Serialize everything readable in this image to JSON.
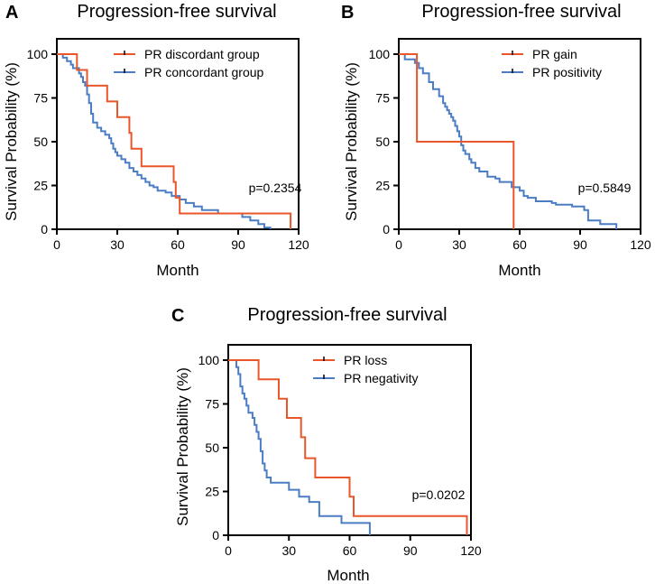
{
  "chart_data": [
    {
      "type": "line",
      "panel": "A",
      "title": "Progression-free survival",
      "xlabel": "Month",
      "ylabel": "Survival Probability (%)",
      "xlim": [
        0,
        120
      ],
      "ylim": [
        0,
        100
      ],
      "xticks": [
        "0",
        "30",
        "60",
        "90",
        "120"
      ],
      "yticks": [
        "0",
        "25",
        "50",
        "75",
        "100"
      ],
      "pvalue": "p=0.2354",
      "series": [
        {
          "name": "PR discordant group",
          "color": "#e8562a",
          "step_points": [
            [
              0,
              100
            ],
            [
              10,
              100
            ],
            [
              10,
              91
            ],
            [
              15,
              91
            ],
            [
              15,
              82
            ],
            [
              25,
              82
            ],
            [
              25,
              73
            ],
            [
              30,
              73
            ],
            [
              30,
              64
            ],
            [
              36,
              64
            ],
            [
              36,
              55
            ],
            [
              37,
              55
            ],
            [
              37,
              46
            ],
            [
              42,
              46
            ],
            [
              42,
              36
            ],
            [
              58,
              36
            ],
            [
              58,
              27
            ],
            [
              59,
              27
            ],
            [
              59,
              18
            ],
            [
              61,
              18
            ],
            [
              61,
              9
            ],
            [
              116,
              9
            ],
            [
              116,
              0
            ]
          ]
        },
        {
          "name": "PR concordant group",
          "color": "#4a7dc4",
          "step_points": [
            [
              0,
              100
            ],
            [
              3,
              100
            ],
            [
              3,
              98
            ],
            [
              5,
              98
            ],
            [
              5,
              96
            ],
            [
              7,
              96
            ],
            [
              7,
              94
            ],
            [
              8,
              94
            ],
            [
              8,
              92
            ],
            [
              11,
              92
            ],
            [
              11,
              89
            ],
            [
              12,
              89
            ],
            [
              12,
              87
            ],
            [
              13,
              87
            ],
            [
              13,
              84
            ],
            [
              14,
              84
            ],
            [
              14,
              82
            ],
            [
              15,
              82
            ],
            [
              15,
              77
            ],
            [
              16,
              77
            ],
            [
              16,
              72
            ],
            [
              17,
              72
            ],
            [
              17,
              66
            ],
            [
              18,
              66
            ],
            [
              18,
              61
            ],
            [
              20,
              61
            ],
            [
              20,
              58
            ],
            [
              22,
              58
            ],
            [
              22,
              56
            ],
            [
              24,
              56
            ],
            [
              24,
              54
            ],
            [
              26,
              54
            ],
            [
              26,
              52
            ],
            [
              27,
              52
            ],
            [
              27,
              49
            ],
            [
              28,
              49
            ],
            [
              28,
              46
            ],
            [
              29,
              46
            ],
            [
              29,
              44
            ],
            [
              30,
              44
            ],
            [
              30,
              42
            ],
            [
              32,
              42
            ],
            [
              32,
              40
            ],
            [
              34,
              40
            ],
            [
              34,
              38
            ],
            [
              36,
              38
            ],
            [
              36,
              35
            ],
            [
              38,
              35
            ],
            [
              38,
              33
            ],
            [
              40,
              33
            ],
            [
              40,
              31
            ],
            [
              42,
              31
            ],
            [
              42,
              29
            ],
            [
              44,
              29
            ],
            [
              44,
              27
            ],
            [
              46,
              27
            ],
            [
              46,
              25
            ],
            [
              48,
              25
            ],
            [
              48,
              24
            ],
            [
              50,
              24
            ],
            [
              50,
              22
            ],
            [
              54,
              22
            ],
            [
              54,
              21
            ],
            [
              57,
              21
            ],
            [
              57,
              19
            ],
            [
              61,
              19
            ],
            [
              61,
              17
            ],
            [
              64,
              17
            ],
            [
              64,
              15
            ],
            [
              68,
              15
            ],
            [
              68,
              13
            ],
            [
              72,
              13
            ],
            [
              72,
              11
            ],
            [
              80,
              11
            ],
            [
              80,
              9
            ],
            [
              92,
              9
            ],
            [
              92,
              7
            ],
            [
              96,
              7
            ],
            [
              96,
              5
            ],
            [
              100,
              5
            ],
            [
              100,
              3
            ],
            [
              103,
              3
            ],
            [
              103,
              1
            ],
            [
              106,
              1
            ],
            [
              106,
              0
            ]
          ]
        }
      ]
    },
    {
      "type": "line",
      "panel": "B",
      "title": "Progression-free survival",
      "xlabel": "Month",
      "ylabel": "Survival Probability (%)",
      "xlim": [
        0,
        120
      ],
      "ylim": [
        0,
        100
      ],
      "xticks": [
        "0",
        "30",
        "60",
        "90",
        "120"
      ],
      "yticks": [
        "0",
        "25",
        "50",
        "75",
        "100"
      ],
      "pvalue": "p=0.5849",
      "series": [
        {
          "name": "PR gain",
          "color": "#e8562a",
          "step_points": [
            [
              0,
              100
            ],
            [
              9,
              100
            ],
            [
              9,
              50
            ],
            [
              57,
              50
            ],
            [
              57,
              0
            ]
          ]
        },
        {
          "name": "PR positivity",
          "color": "#4a7dc4",
          "step_points": [
            [
              0,
              100
            ],
            [
              3,
              100
            ],
            [
              3,
              97
            ],
            [
              8,
              97
            ],
            [
              8,
              95
            ],
            [
              10,
              95
            ],
            [
              10,
              92
            ],
            [
              12,
              92
            ],
            [
              12,
              89
            ],
            [
              15,
              89
            ],
            [
              15,
              84
            ],
            [
              17,
              84
            ],
            [
              17,
              80
            ],
            [
              20,
              80
            ],
            [
              20,
              76
            ],
            [
              22,
              76
            ],
            [
              22,
              72
            ],
            [
              23,
              72
            ],
            [
              23,
              70
            ],
            [
              24,
              70
            ],
            [
              24,
              68
            ],
            [
              25,
              68
            ],
            [
              25,
              66
            ],
            [
              26,
              66
            ],
            [
              26,
              64
            ],
            [
              27,
              64
            ],
            [
              27,
              62
            ],
            [
              28,
              62
            ],
            [
              28,
              59
            ],
            [
              29,
              59
            ],
            [
              29,
              56
            ],
            [
              30,
              56
            ],
            [
              30,
              53
            ],
            [
              31,
              53
            ],
            [
              31,
              48
            ],
            [
              32,
              48
            ],
            [
              32,
              45
            ],
            [
              33,
              45
            ],
            [
              33,
              43
            ],
            [
              35,
              43
            ],
            [
              35,
              40
            ],
            [
              36,
              40
            ],
            [
              36,
              38
            ],
            [
              38,
              38
            ],
            [
              38,
              35
            ],
            [
              40,
              35
            ],
            [
              40,
              33
            ],
            [
              44,
              33
            ],
            [
              44,
              30
            ],
            [
              48,
              30
            ],
            [
              48,
              29
            ],
            [
              50,
              29
            ],
            [
              50,
              27
            ],
            [
              56,
              27
            ],
            [
              56,
              24
            ],
            [
              60,
              24
            ],
            [
              60,
              22
            ],
            [
              62,
              22
            ],
            [
              62,
              19
            ],
            [
              64,
              19
            ],
            [
              64,
              18
            ],
            [
              68,
              18
            ],
            [
              68,
              16
            ],
            [
              76,
              16
            ],
            [
              76,
              15
            ],
            [
              78,
              15
            ],
            [
              78,
              14
            ],
            [
              86,
              14
            ],
            [
              86,
              13
            ],
            [
              92,
              13
            ],
            [
              92,
              11
            ],
            [
              94,
              11
            ],
            [
              94,
              5
            ],
            [
              100,
              5
            ],
            [
              100,
              3
            ],
            [
              108,
              3
            ],
            [
              108,
              0
            ]
          ]
        }
      ]
    },
    {
      "type": "line",
      "panel": "C",
      "title": "Progression-free survival",
      "xlabel": "Month",
      "ylabel": "Survival Probability (%)",
      "xlim": [
        0,
        120
      ],
      "ylim": [
        0,
        100
      ],
      "xticks": [
        "0",
        "30",
        "60",
        "90",
        "120"
      ],
      "yticks": [
        "0",
        "25",
        "50",
        "75",
        "100"
      ],
      "pvalue": "p=0.0202",
      "series": [
        {
          "name": "PR loss",
          "color": "#e8562a",
          "step_points": [
            [
              0,
              100
            ],
            [
              15,
              100
            ],
            [
              15,
              89
            ],
            [
              25,
              89
            ],
            [
              25,
              78
            ],
            [
              29,
              78
            ],
            [
              29,
              67
            ],
            [
              36,
              67
            ],
            [
              36,
              56
            ],
            [
              38,
              56
            ],
            [
              38,
              44
            ],
            [
              43,
              44
            ],
            [
              43,
              33
            ],
            [
              60,
              33
            ],
            [
              60,
              22
            ],
            [
              62,
              22
            ],
            [
              62,
              11
            ],
            [
              118,
              11
            ],
            [
              118,
              0
            ]
          ]
        },
        {
          "name": "PR negativity",
          "color": "#4a7dc4",
          "step_points": [
            [
              0,
              100
            ],
            [
              4,
              100
            ],
            [
              4,
              96
            ],
            [
              5,
              96
            ],
            [
              5,
              92
            ],
            [
              6,
              92
            ],
            [
              6,
              85
            ],
            [
              7,
              85
            ],
            [
              7,
              81
            ],
            [
              8,
              81
            ],
            [
              8,
              78
            ],
            [
              9,
              78
            ],
            [
              9,
              74
            ],
            [
              10,
              74
            ],
            [
              10,
              70
            ],
            [
              12,
              70
            ],
            [
              12,
              67
            ],
            [
              13,
              67
            ],
            [
              13,
              63
            ],
            [
              14,
              63
            ],
            [
              14,
              59
            ],
            [
              15,
              59
            ],
            [
              15,
              55
            ],
            [
              16,
              55
            ],
            [
              16,
              48
            ],
            [
              17,
              48
            ],
            [
              17,
              41
            ],
            [
              18,
              41
            ],
            [
              18,
              37
            ],
            [
              19,
              37
            ],
            [
              19,
              33
            ],
            [
              21,
              33
            ],
            [
              21,
              30
            ],
            [
              30,
              30
            ],
            [
              30,
              26
            ],
            [
              35,
              26
            ],
            [
              35,
              22
            ],
            [
              40,
              22
            ],
            [
              40,
              19
            ],
            [
              45,
              19
            ],
            [
              45,
              11
            ],
            [
              56,
              11
            ],
            [
              56,
              7
            ],
            [
              70,
              7
            ],
            [
              70,
              0
            ]
          ]
        }
      ]
    }
  ]
}
